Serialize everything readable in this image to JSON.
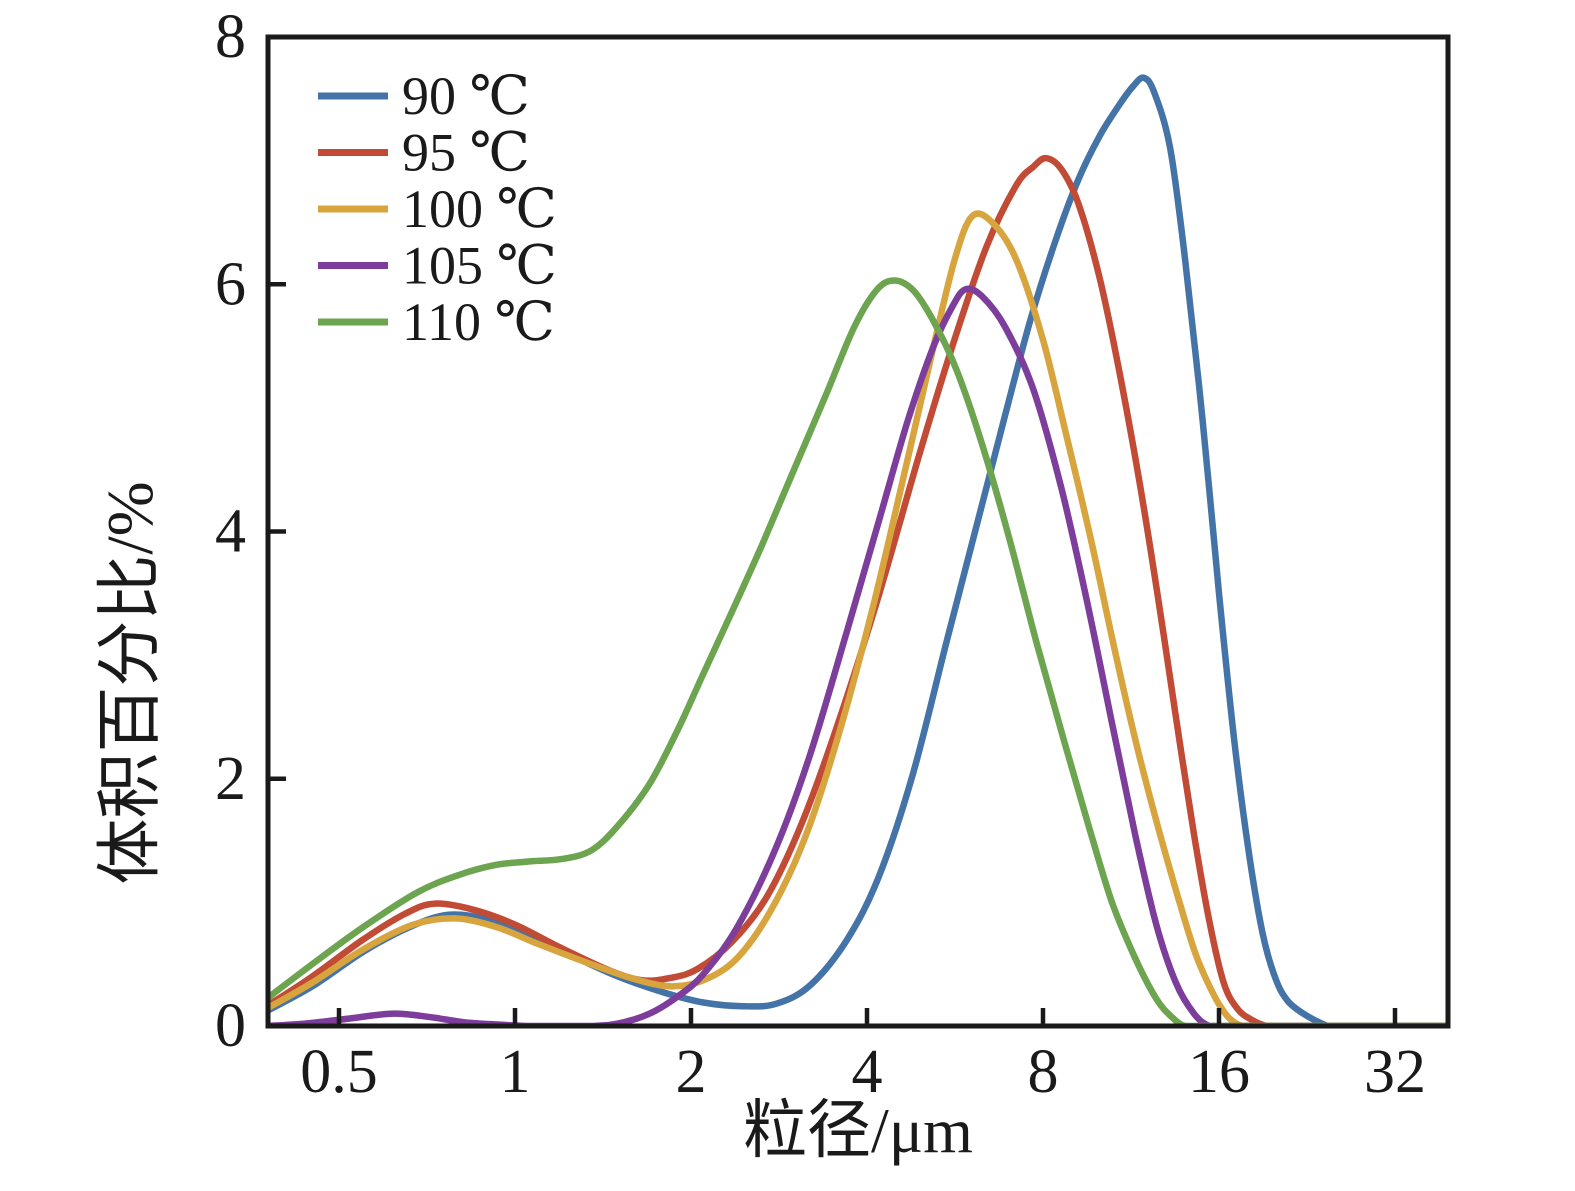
{
  "chart_data": {
    "type": "line",
    "title": "",
    "xlabel": "粒径/μm",
    "ylabel": "体积百分比/%",
    "x_scale": "log2",
    "xlim": [
      0.376,
      39.3
    ],
    "ylim": [
      0,
      8
    ],
    "x_ticks": [
      0.5,
      1,
      2,
      4,
      8,
      16,
      32
    ],
    "x_tick_labels": [
      "0.5",
      "1",
      "2",
      "4",
      "8",
      "16",
      "32"
    ],
    "y_ticks": [
      0,
      2,
      4,
      6,
      8
    ],
    "y_tick_labels": [
      "0",
      "2",
      "4",
      "6",
      "8"
    ],
    "grid": false,
    "legend_position": "upper-left",
    "frame_color": "#1a1a1a",
    "series": [
      {
        "name": "90 ℃",
        "color": "#4473A8",
        "peak": {
          "x": 11.9,
          "y": 7.67
        },
        "points": [
          [
            0.376,
            0.12
          ],
          [
            0.45,
            0.32
          ],
          [
            0.55,
            0.6
          ],
          [
            0.66,
            0.8
          ],
          [
            0.77,
            0.9
          ],
          [
            0.9,
            0.86
          ],
          [
            1.05,
            0.75
          ],
          [
            1.25,
            0.57
          ],
          [
            1.5,
            0.4
          ],
          [
            1.8,
            0.27
          ],
          [
            2.1,
            0.19
          ],
          [
            2.45,
            0.16
          ],
          [
            2.8,
            0.18
          ],
          [
            3.2,
            0.33
          ],
          [
            3.7,
            0.7
          ],
          [
            4.2,
            1.22
          ],
          [
            4.8,
            2.05
          ],
          [
            5.5,
            3.15
          ],
          [
            6.2,
            4.1
          ],
          [
            6.9,
            4.95
          ],
          [
            7.6,
            5.7
          ],
          [
            8.4,
            6.35
          ],
          [
            9.2,
            6.85
          ],
          [
            10.0,
            7.2
          ],
          [
            10.8,
            7.45
          ],
          [
            11.4,
            7.6
          ],
          [
            11.9,
            7.67
          ],
          [
            12.4,
            7.55
          ],
          [
            13.2,
            7.1
          ],
          [
            14.0,
            6.2
          ],
          [
            15.0,
            4.9
          ],
          [
            16.0,
            3.5
          ],
          [
            17.0,
            2.3
          ],
          [
            18.0,
            1.4
          ],
          [
            19.0,
            0.75
          ],
          [
            20.0,
            0.38
          ],
          [
            21.0,
            0.2
          ],
          [
            22.3,
            0.1
          ],
          [
            23.5,
            0.04
          ],
          [
            24.6,
            0.0
          ],
          [
            25.5,
            0.0
          ],
          [
            28.0,
            0.0
          ],
          [
            33.0,
            0.0
          ],
          [
            39.3,
            0.0
          ]
        ]
      },
      {
        "name": "95 ℃",
        "color": "#C14B35",
        "peak": {
          "x": 8.1,
          "y": 7.02
        },
        "points": [
          [
            0.376,
            0.16
          ],
          [
            0.45,
            0.4
          ],
          [
            0.55,
            0.7
          ],
          [
            0.65,
            0.91
          ],
          [
            0.73,
            0.99
          ],
          [
            0.85,
            0.94
          ],
          [
            1.0,
            0.82
          ],
          [
            1.2,
            0.63
          ],
          [
            1.45,
            0.45
          ],
          [
            1.65,
            0.37
          ],
          [
            1.85,
            0.39
          ],
          [
            2.05,
            0.46
          ],
          [
            2.35,
            0.68
          ],
          [
            2.7,
            1.05
          ],
          [
            3.1,
            1.65
          ],
          [
            3.6,
            2.5
          ],
          [
            4.2,
            3.5
          ],
          [
            4.9,
            4.6
          ],
          [
            5.6,
            5.5
          ],
          [
            6.4,
            6.3
          ],
          [
            7.2,
            6.8
          ],
          [
            7.7,
            6.95
          ],
          [
            8.1,
            7.02
          ],
          [
            8.6,
            6.93
          ],
          [
            9.2,
            6.65
          ],
          [
            10.0,
            6.05
          ],
          [
            10.8,
            5.3
          ],
          [
            11.7,
            4.4
          ],
          [
            12.6,
            3.45
          ],
          [
            13.5,
            2.5
          ],
          [
            14.5,
            1.55
          ],
          [
            15.4,
            0.85
          ],
          [
            16.3,
            0.35
          ],
          [
            17.2,
            0.14
          ],
          [
            18.2,
            0.05
          ],
          [
            19.3,
            0.0
          ],
          [
            20.0,
            0.0
          ],
          [
            24.0,
            0.0
          ],
          [
            32.0,
            0.0
          ],
          [
            39.3,
            0.0
          ]
        ]
      },
      {
        "name": "100 ℃",
        "color": "#D7A43E",
        "peak": {
          "x": 6.05,
          "y": 6.55
        },
        "points": [
          [
            0.376,
            0.14
          ],
          [
            0.45,
            0.35
          ],
          [
            0.55,
            0.62
          ],
          [
            0.67,
            0.82
          ],
          [
            0.79,
            0.87
          ],
          [
            0.93,
            0.8
          ],
          [
            1.1,
            0.66
          ],
          [
            1.35,
            0.5
          ],
          [
            1.6,
            0.38
          ],
          [
            1.85,
            0.32
          ],
          [
            2.1,
            0.37
          ],
          [
            2.4,
            0.55
          ],
          [
            2.75,
            0.95
          ],
          [
            3.15,
            1.55
          ],
          [
            3.6,
            2.4
          ],
          [
            4.1,
            3.4
          ],
          [
            4.65,
            4.5
          ],
          [
            5.2,
            5.5
          ],
          [
            5.65,
            6.2
          ],
          [
            6.05,
            6.55
          ],
          [
            6.55,
            6.5
          ],
          [
            7.2,
            6.2
          ],
          [
            8.0,
            5.55
          ],
          [
            8.8,
            4.75
          ],
          [
            9.7,
            3.9
          ],
          [
            10.6,
            3.05
          ],
          [
            11.6,
            2.25
          ],
          [
            12.6,
            1.6
          ],
          [
            13.6,
            1.05
          ],
          [
            14.6,
            0.58
          ],
          [
            15.6,
            0.27
          ],
          [
            16.4,
            0.1
          ],
          [
            17.0,
            0.03
          ],
          [
            17.6,
            0.0
          ],
          [
            18.5,
            0.0
          ],
          [
            22.0,
            0.0
          ],
          [
            30.0,
            0.0
          ],
          [
            39.3,
            0.0
          ]
        ]
      },
      {
        "name": "105 ℃",
        "color": "#7C3D9B",
        "peak": {
          "x": 5.9,
          "y": 5.96
        },
        "points": [
          [
            0.376,
            0.0
          ],
          [
            0.44,
            0.02
          ],
          [
            0.52,
            0.06
          ],
          [
            0.62,
            0.1
          ],
          [
            0.72,
            0.07
          ],
          [
            0.82,
            0.03
          ],
          [
            0.95,
            0.01
          ],
          [
            1.05,
            0.0
          ],
          [
            1.2,
            0.0
          ],
          [
            1.35,
            0.0
          ],
          [
            1.5,
            0.02
          ],
          [
            1.7,
            0.1
          ],
          [
            1.9,
            0.24
          ],
          [
            2.1,
            0.42
          ],
          [
            2.4,
            0.8
          ],
          [
            2.8,
            1.45
          ],
          [
            3.2,
            2.2
          ],
          [
            3.7,
            3.2
          ],
          [
            4.2,
            4.1
          ],
          [
            4.7,
            4.9
          ],
          [
            5.2,
            5.5
          ],
          [
            5.6,
            5.82
          ],
          [
            5.9,
            5.96
          ],
          [
            6.3,
            5.9
          ],
          [
            6.9,
            5.65
          ],
          [
            7.7,
            5.15
          ],
          [
            8.6,
            4.35
          ],
          [
            9.5,
            3.45
          ],
          [
            10.5,
            2.45
          ],
          [
            11.5,
            1.55
          ],
          [
            12.5,
            0.82
          ],
          [
            13.5,
            0.35
          ],
          [
            14.5,
            0.1
          ],
          [
            15.4,
            0.0
          ],
          [
            16.5,
            0.0
          ],
          [
            20.0,
            0.0
          ],
          [
            28.0,
            0.0
          ],
          [
            39.3,
            0.0
          ]
        ]
      },
      {
        "name": "110 ℃",
        "color": "#6CA450",
        "peak": {
          "x": 4.45,
          "y": 6.03
        },
        "points": [
          [
            0.376,
            0.22
          ],
          [
            0.45,
            0.5
          ],
          [
            0.55,
            0.8
          ],
          [
            0.68,
            1.08
          ],
          [
            0.8,
            1.22
          ],
          [
            0.92,
            1.3
          ],
          [
            1.05,
            1.33
          ],
          [
            1.2,
            1.35
          ],
          [
            1.35,
            1.42
          ],
          [
            1.5,
            1.62
          ],
          [
            1.7,
            1.96
          ],
          [
            1.9,
            2.4
          ],
          [
            2.1,
            2.85
          ],
          [
            2.35,
            3.35
          ],
          [
            2.65,
            3.9
          ],
          [
            3.0,
            4.5
          ],
          [
            3.4,
            5.1
          ],
          [
            3.8,
            5.65
          ],
          [
            4.15,
            5.95
          ],
          [
            4.45,
            6.03
          ],
          [
            4.8,
            5.95
          ],
          [
            5.2,
            5.7
          ],
          [
            5.7,
            5.3
          ],
          [
            6.3,
            4.7
          ],
          [
            7.0,
            3.95
          ],
          [
            7.8,
            3.1
          ],
          [
            8.7,
            2.3
          ],
          [
            9.6,
            1.6
          ],
          [
            10.5,
            1.0
          ],
          [
            11.5,
            0.55
          ],
          [
            12.5,
            0.22
          ],
          [
            13.3,
            0.07
          ],
          [
            14.0,
            0.0
          ],
          [
            15.0,
            0.0
          ],
          [
            18.0,
            0.0
          ],
          [
            26.0,
            0.0
          ],
          [
            39.3,
            0.0
          ]
        ]
      }
    ]
  }
}
